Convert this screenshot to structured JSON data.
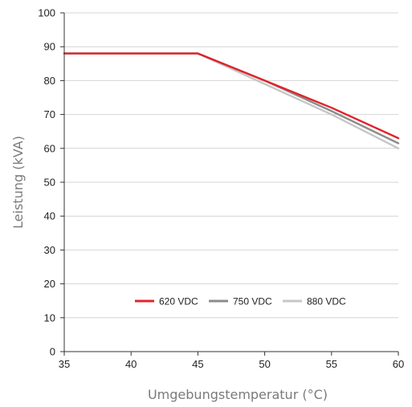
{
  "chart_data": {
    "type": "line",
    "title": "",
    "xlabel": "Umgebungstemperatur (°C)",
    "ylabel": "Leistung (kVA)",
    "xlim": [
      35,
      60
    ],
    "ylim": [
      0,
      100
    ],
    "x_ticks": [
      "35",
      "40",
      "45",
      "50",
      "55",
      "60"
    ],
    "y_ticks": [
      "0",
      "10",
      "20",
      "30",
      "40",
      "50",
      "60",
      "70",
      "80",
      "90",
      "100"
    ],
    "grid": "horizontal",
    "legend_position": "bottom-center",
    "series": [
      {
        "name": "620 VDC",
        "color": "#e0242b",
        "points": [
          [
            35,
            88
          ],
          [
            45,
            88
          ],
          [
            50,
            80
          ],
          [
            55,
            72
          ],
          [
            60,
            63
          ]
        ]
      },
      {
        "name": "750 VDC",
        "color": "#8c8c8c",
        "points": [
          [
            35,
            88
          ],
          [
            45,
            88
          ],
          [
            50,
            80
          ],
          [
            55,
            71
          ],
          [
            60,
            61.5
          ]
        ]
      },
      {
        "name": "880 VDC",
        "color": "#c6c6c6",
        "points": [
          [
            35,
            88
          ],
          [
            45,
            88
          ],
          [
            50,
            79
          ],
          [
            55,
            70
          ],
          [
            60,
            60
          ]
        ]
      }
    ]
  }
}
